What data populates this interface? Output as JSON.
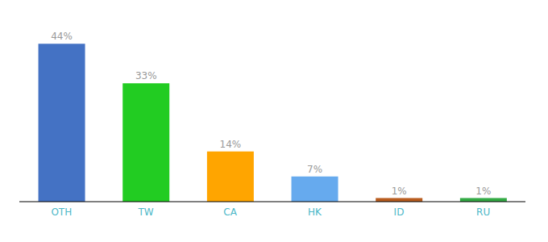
{
  "chart_data": {
    "type": "bar",
    "categories": [
      "OTH",
      "TW",
      "CA",
      "HK",
      "ID",
      "RU"
    ],
    "values": [
      44,
      33,
      14,
      7,
      1,
      1
    ],
    "value_labels": [
      "44%",
      "33%",
      "14%",
      "7%",
      "1%",
      "1%"
    ],
    "colors": [
      "#4472c4",
      "#22cc22",
      "#ffa500",
      "#66aaee",
      "#b85c1e",
      "#33aa44"
    ],
    "ylim": [
      0,
      49
    ],
    "data_labels": true,
    "tick_labels": "x",
    "grid": false
  }
}
